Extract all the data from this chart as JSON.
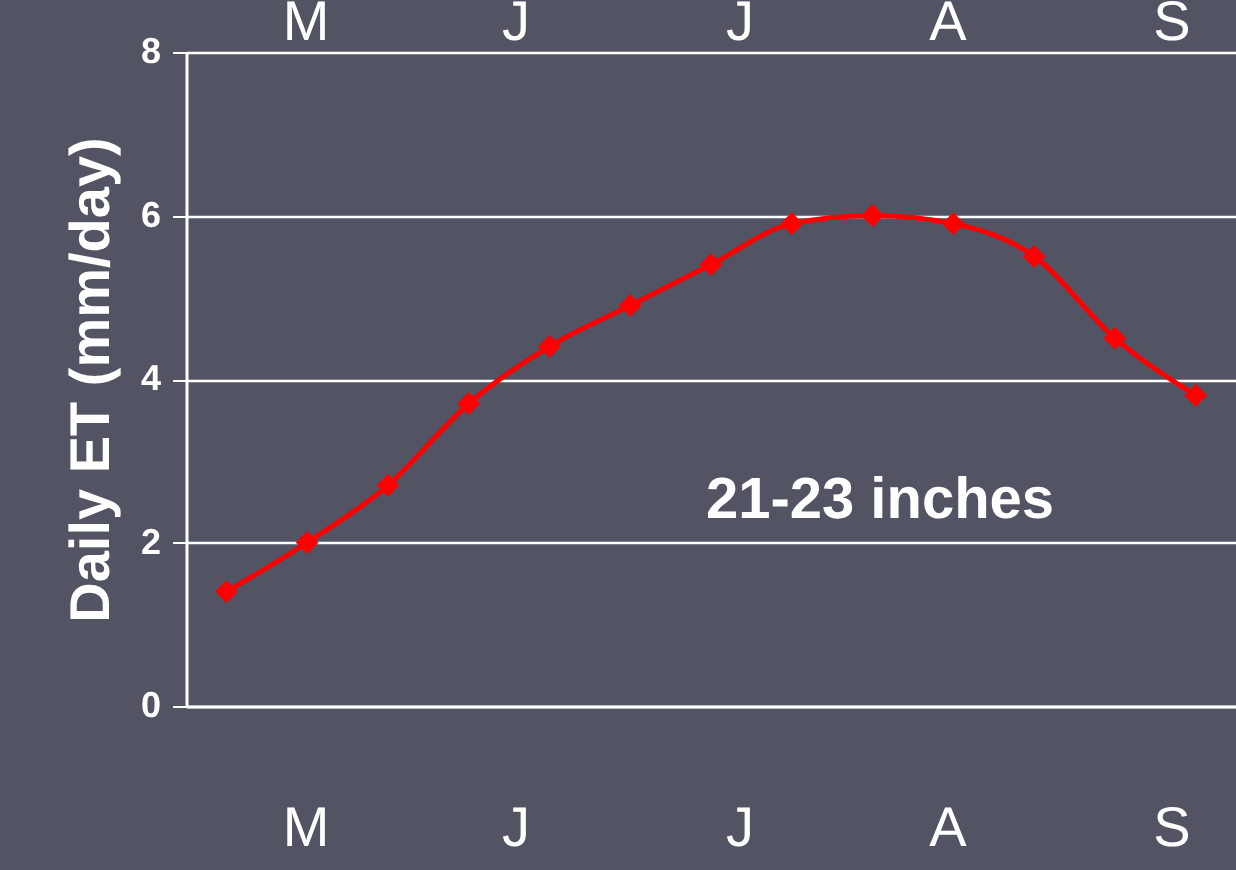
{
  "chart_data": {
    "type": "line",
    "ylabel": "Daily ET (mm/day)",
    "annotations": [
      "M",
      "J",
      "J",
      "A",
      "S",
      "21-23 inches",
      "M",
      "J",
      "J",
      "A",
      "S"
    ],
    "categories": [
      null,
      null,
      null,
      null,
      null,
      null,
      null,
      null,
      null,
      null,
      null,
      null,
      null
    ],
    "series": [
      {
        "color": "#ff0000",
        "values": [
          1.4,
          2.0,
          2.7,
          3.7,
          4.4,
          4.9,
          5.4,
          5.9,
          6.0,
          5.9,
          5.5,
          4.5,
          3.8
        ]
      }
    ],
    "ylim": [
      0,
      8
    ],
    "yticks": [
      0,
      2,
      4,
      6,
      8
    ],
    "grid": "y",
    "marker": "diamond",
    "line_style": "solid"
  }
}
